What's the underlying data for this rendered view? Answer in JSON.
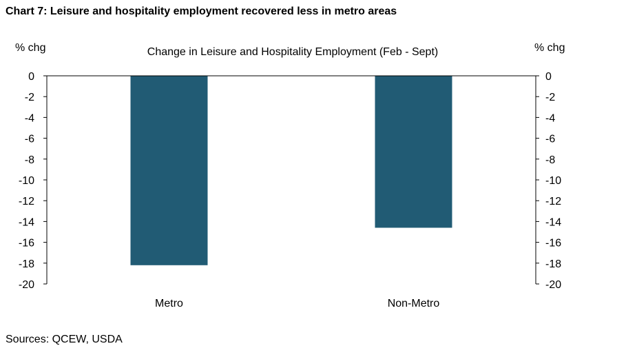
{
  "heading": "Chart 7: Leisure and hospitality employment recovered less in metro areas",
  "source": "Sources: QCEW, USDA",
  "colors": {
    "bar": "#215b74",
    "axis": "#000000"
  },
  "chart_data": {
    "type": "bar",
    "title": "Change in Leisure and Hospitality Employment (Feb - Sept)",
    "y_unit_left": "% chg",
    "y_unit_right": "% chg",
    "categories": [
      "Metro",
      "Non-Metro"
    ],
    "values": [
      -18.2,
      -14.6
    ],
    "ylim": [
      -20,
      0
    ],
    "yticks": [
      0,
      -2,
      -4,
      -6,
      -8,
      -10,
      -12,
      -14,
      -16,
      -18,
      -20
    ],
    "grid": false,
    "legend": "none",
    "secondary_y_axis": true
  }
}
